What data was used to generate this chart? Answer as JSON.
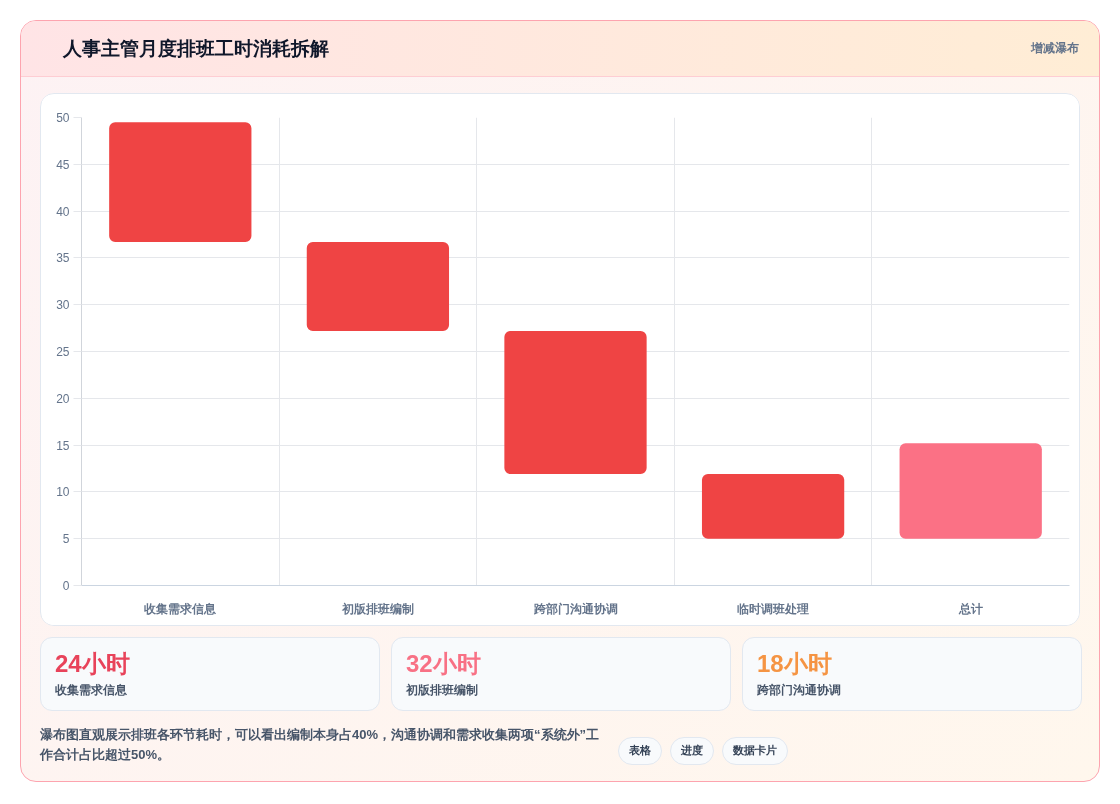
{
  "chart_data": [
    {
      "type": "bar",
      "title": "人事主管月度排班工时消耗拆解",
      "subtitle": "增减瀑布",
      "categories": [
        "收集需求信息",
        "初版排班编制",
        "跨部门沟通协调",
        "临时调班处理",
        "总计"
      ],
      "base": [
        36.7,
        27.2,
        11.9,
        5,
        5
      ],
      "values": [
        12.8,
        9.5,
        15.3,
        6.9,
        10.2
      ],
      "colors": [
        "#ef4444",
        "#ef4444",
        "#ef4444",
        "#ef4444",
        "#fb7185"
      ],
      "ylim": [
        0,
        50
      ],
      "yticks": [
        0,
        5,
        10,
        15,
        20,
        25,
        30,
        35,
        40,
        45,
        50
      ],
      "grid": true,
      "annotations": [
        "瀑布图直观展示排班各环节耗时，可以看出编制本身占40%，沟通协调和需求收集两项“系统外”工作合计占比超过50%。",
        "表格",
        "进度",
        "数据卡片"
      ]
    },
    {
      "type": "other",
      "title": "24小时",
      "subtitle": "收集需求信息",
      "color": "#e8435a"
    },
    {
      "type": "other",
      "title": "32小时",
      "subtitle": "初版排班编制",
      "color": "#f87185"
    },
    {
      "type": "other",
      "title": "18小时",
      "subtitle": "跨部门沟通协调",
      "color": "#f59443"
    }
  ]
}
